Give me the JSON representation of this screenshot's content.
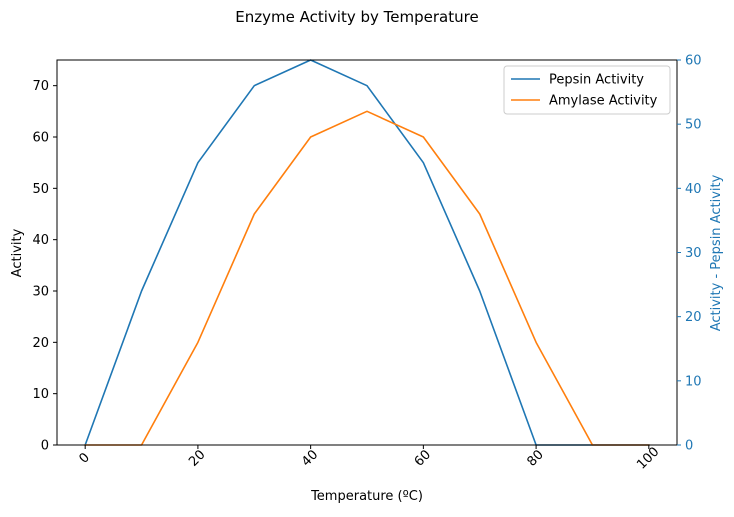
{
  "chart_data": {
    "type": "line",
    "title": "Enzyme Activity by Temperature",
    "xlabel": "Temperature (ºC)",
    "ylabel": "Activity",
    "y2label": "Activity - Pepsin Activity",
    "x": [
      0,
      10,
      20,
      30,
      40,
      50,
      60,
      70,
      80,
      90,
      100
    ],
    "xticks": [
      0,
      20,
      40,
      60,
      80,
      100
    ],
    "xticklabels": [
      "0",
      "20",
      "40",
      "60",
      "80",
      "100"
    ],
    "xlim": [
      -5,
      105
    ],
    "ylim": [
      0,
      75
    ],
    "yticks": [
      0,
      10,
      20,
      30,
      40,
      50,
      60,
      70
    ],
    "yticklabels": [
      "0",
      "10",
      "20",
      "30",
      "40",
      "50",
      "60",
      "70"
    ],
    "y2lim": [
      0,
      60
    ],
    "y2ticks": [
      0,
      10,
      20,
      30,
      40,
      50,
      60
    ],
    "y2ticklabels": [
      "0",
      "10",
      "20",
      "30",
      "40",
      "50",
      "60"
    ],
    "series": [
      {
        "name": "Pepsin Activity",
        "axis": "right",
        "color": "#1f77b4",
        "values": [
          0,
          24,
          44,
          56,
          60,
          56,
          44,
          24,
          0,
          0,
          0
        ]
      },
      {
        "name": "Amylase Activity",
        "axis": "left",
        "color": "#ff7f0e",
        "values": [
          0,
          0,
          20,
          45,
          60,
          65,
          60,
          45,
          20,
          0,
          0
        ]
      }
    ],
    "right_axis_color": "#1f77b4",
    "legend": "top-right",
    "grid": false
  }
}
